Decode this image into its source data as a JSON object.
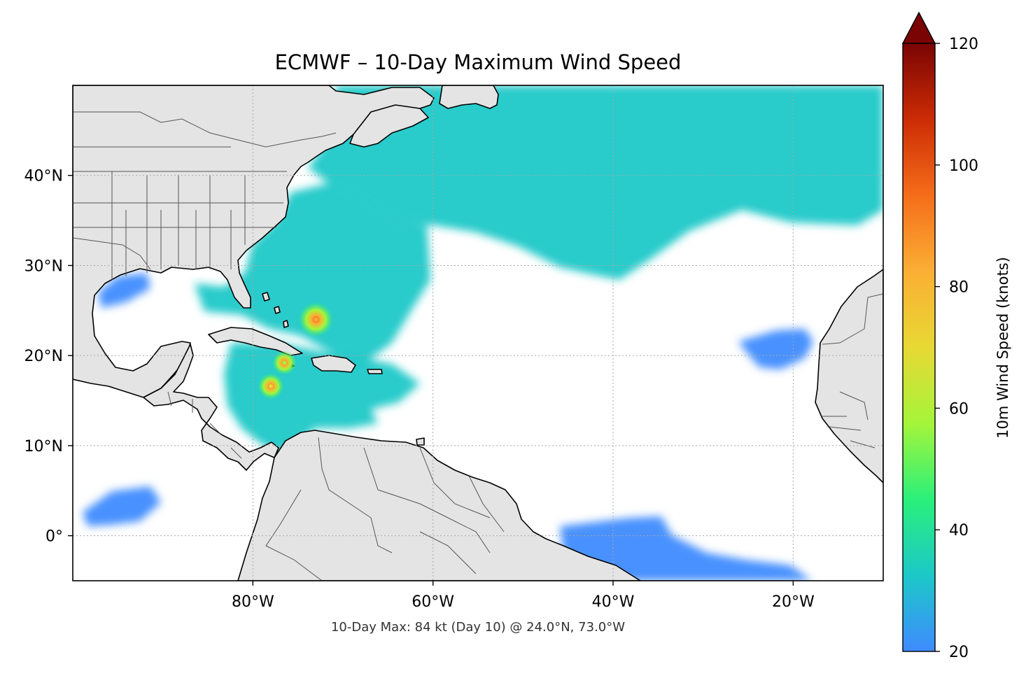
{
  "title": "ECMWF – 10-Day Maximum Wind Speed",
  "caption": "10-Day Max: 84 kt (Day 10) @ 24.0°N, 73.0°W",
  "map": {
    "lon_range": [
      -100,
      -10
    ],
    "lat_range": [
      -5,
      50
    ],
    "x_ticks": [
      {
        "lon": -80,
        "label": "80°W"
      },
      {
        "lon": -60,
        "label": "60°W"
      },
      {
        "lon": -40,
        "label": "40°W"
      },
      {
        "lon": -20,
        "label": "20°W"
      }
    ],
    "y_ticks": [
      {
        "lat": 40,
        "label": "40°N"
      },
      {
        "lat": 30,
        "label": "30°N"
      },
      {
        "lat": 20,
        "label": "20°N"
      },
      {
        "lat": 10,
        "label": "10°N"
      },
      {
        "lat": 0,
        "label": "0°"
      }
    ],
    "land_color": "#e4e4e4",
    "gridlines": "dotted"
  },
  "colorbar": {
    "label": "10m Wind Speed (knots)",
    "min": 20,
    "max": 120,
    "extend": "max",
    "ticks": [
      {
        "value": 20,
        "label": "20"
      },
      {
        "value": 40,
        "label": "40"
      },
      {
        "value": 60,
        "label": "60"
      },
      {
        "value": 80,
        "label": "80"
      },
      {
        "value": 100,
        "label": "100"
      },
      {
        "value": 120,
        "label": "120"
      }
    ],
    "stops": [
      "#3f8bff",
      "#1cc8c8",
      "#2af07a",
      "#a5f53a",
      "#e8d834",
      "#fbaf34",
      "#f56d1a",
      "#cc2c05",
      "#7a0403"
    ]
  },
  "wind_fields": [
    {
      "name": "north-atlantic-band",
      "speed": 32
    },
    {
      "name": "western-atlantic",
      "speed": 28
    },
    {
      "name": "caribbean",
      "speed": 28
    },
    {
      "name": "eastern-atlantic-patch",
      "speed": 25
    },
    {
      "name": "equatorial-south",
      "speed": 25
    },
    {
      "name": "eastern-pacific",
      "speed": 24
    },
    {
      "name": "gulf-of-mexico",
      "speed": 24
    }
  ],
  "storm_maxima": [
    {
      "name": "storm-bahamas",
      "lon": -73.0,
      "lat": 24.0,
      "speed": 84
    },
    {
      "name": "storm-haiti-west",
      "lon": -76.5,
      "lat": 19.2,
      "speed": 62
    },
    {
      "name": "storm-jamaica-south",
      "lon": -78.0,
      "lat": 16.6,
      "speed": 66
    }
  ]
}
